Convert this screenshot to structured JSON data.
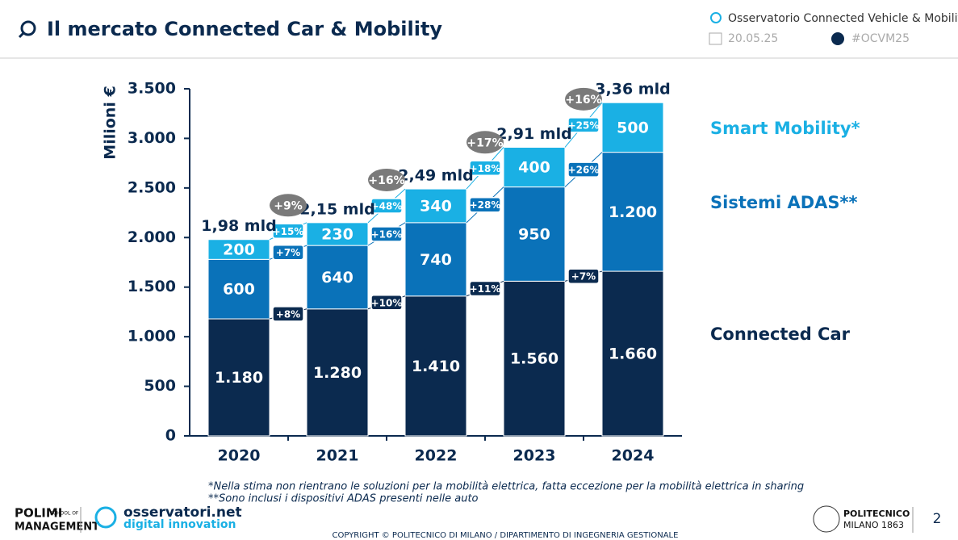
{
  "header": {
    "title": "Il mercato Connected Car & Mobility",
    "observatory": "Osservatorio Connected  Vehicle & Mobility",
    "date": "20.05.25",
    "hashtag": "#OCVM25"
  },
  "chart_data": {
    "type": "stacked-bar",
    "y_label": "Milioni €",
    "categories": [
      "2020",
      "2021",
      "2022",
      "2023",
      "2024"
    ],
    "series": [
      {
        "name": "Connected Car",
        "color": "#0b2a4f",
        "values": [
          1180,
          1280,
          1410,
          1560,
          1660
        ],
        "value_labels": [
          "1.180",
          "1.280",
          "1.410",
          "1.560",
          "1.660"
        ],
        "growth": {
          "values": [
            8,
            10,
            11,
            7
          ],
          "value_labels": [
            "+8%",
            "+10%",
            "+11%",
            "+7%"
          ]
        }
      },
      {
        "name": "Sistemi ADAS**",
        "color": "#0a72b9",
        "values": [
          600,
          640,
          740,
          950,
          1200
        ],
        "value_labels": [
          "600",
          "640",
          "740",
          "950",
          "1.200"
        ],
        "growth": {
          "values": [
            7,
            16,
            28,
            26
          ],
          "value_labels": [
            "+7%",
            "+16%",
            "+28%",
            "+26%"
          ]
        }
      },
      {
        "name": "Smart Mobility*",
        "color": "#1ab0e4",
        "values": [
          200,
          230,
          340,
          400,
          500
        ],
        "value_labels": [
          "200",
          "230",
          "340",
          "400",
          "500"
        ],
        "growth": {
          "values": [
            15,
            48,
            18,
            25
          ],
          "value_labels": [
            "+15%",
            "+48%",
            "+18%",
            "+25%"
          ]
        }
      }
    ],
    "totals": {
      "values": [
        1980,
        2150,
        2490,
        2910,
        3360
      ],
      "value_labels": [
        "1,98 mld",
        "2,15 mld",
        "2,49 mld",
        "2,91 mld",
        "3,36 mld"
      ]
    },
    "total_growth": {
      "values": [
        9,
        16,
        17,
        16
      ],
      "value_labels": [
        "+9%",
        "+16%",
        "+17%",
        "+16%"
      ]
    },
    "ylim": [
      0,
      3500
    ],
    "yticks": [
      0,
      500,
      {
        "value": 1000,
        "label": "1.000"
      },
      {
        "value": 1500,
        "label": "1.500"
      },
      {
        "value": 2000,
        "label": "2.000"
      },
      {
        "value": 2500,
        "label": "2.500"
      },
      {
        "value": 3000,
        "label": "3.000"
      },
      {
        "value": 3500,
        "label": "3.500"
      }
    ],
    "grid": false,
    "footnotes": [
      "*Nella stima non rientrano le soluzioni per la mobilità elettrica, fatta eccezione per la mobilità elettrica in sharing",
      "**Sono inclusi i dispositivi ADAS presenti nelle auto"
    ]
  },
  "footer": {
    "polimi": "POLIMI",
    "school": "SCHOOL OF",
    "management": "MANAGEMENT",
    "osservatori": "osservatori.net",
    "digital": "digital innovation",
    "politecnico": "POLITECNICO",
    "milano": "MILANO 1863",
    "page": "2",
    "copyright": "COPYRIGHT © POLITECNICO DI MILANO / DIPARTIMENTO DI INGEGNERIA GESTIONALE"
  }
}
